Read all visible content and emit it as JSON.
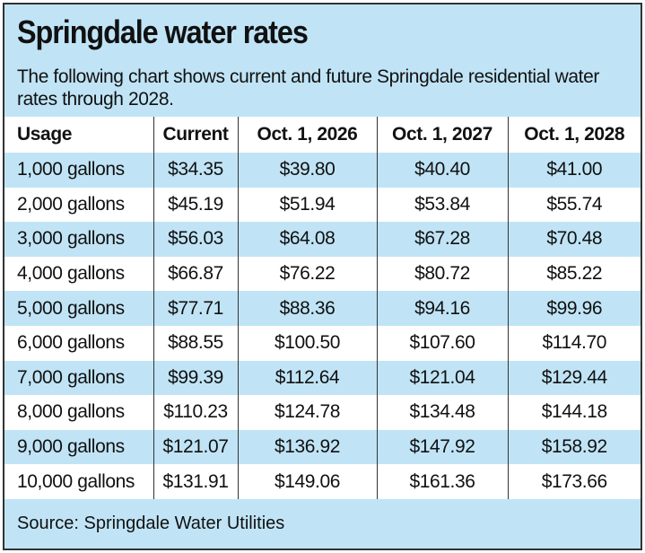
{
  "header": {
    "title": "Springdale water rates",
    "subtitle": "The following chart shows current and future Springdale residential water rates through 2028."
  },
  "table": {
    "columns": [
      "Usage",
      "Current",
      "Oct. 1, 2026",
      "Oct. 1, 2027",
      "Oct. 1, 2028"
    ],
    "rows": [
      [
        "1,000 gallons",
        "$34.35",
        "$39.80",
        "$40.40",
        "$41.00"
      ],
      [
        "2,000 gallons",
        "$45.19",
        "$51.94",
        "$53.84",
        "$55.74"
      ],
      [
        "3,000 gallons",
        "$56.03",
        "$64.08",
        "$67.28",
        "$70.48"
      ],
      [
        "4,000 gallons",
        "$66.87",
        "$76.22",
        "$80.72",
        "$85.22"
      ],
      [
        "5,000 gallons",
        "$77.71",
        "$88.36",
        "$94.16",
        "$99.96"
      ],
      [
        "6,000 gallons",
        "$88.55",
        "$100.50",
        "$107.60",
        "$114.70"
      ],
      [
        "7,000 gallons",
        "$99.39",
        "$112.64",
        "$121.04",
        "$129.44"
      ],
      [
        "8,000 gallons",
        "$110.23",
        "$124.78",
        "$134.48",
        "$144.18"
      ],
      [
        "9,000 gallons",
        "$121.07",
        "$136.92",
        "$147.92",
        "$158.92"
      ],
      [
        "10,000 gallons",
        "$131.91",
        "$149.06",
        "$161.36",
        "$173.66"
      ]
    ]
  },
  "footer": {
    "source": "Source: Springdale Water Utilities"
  }
}
